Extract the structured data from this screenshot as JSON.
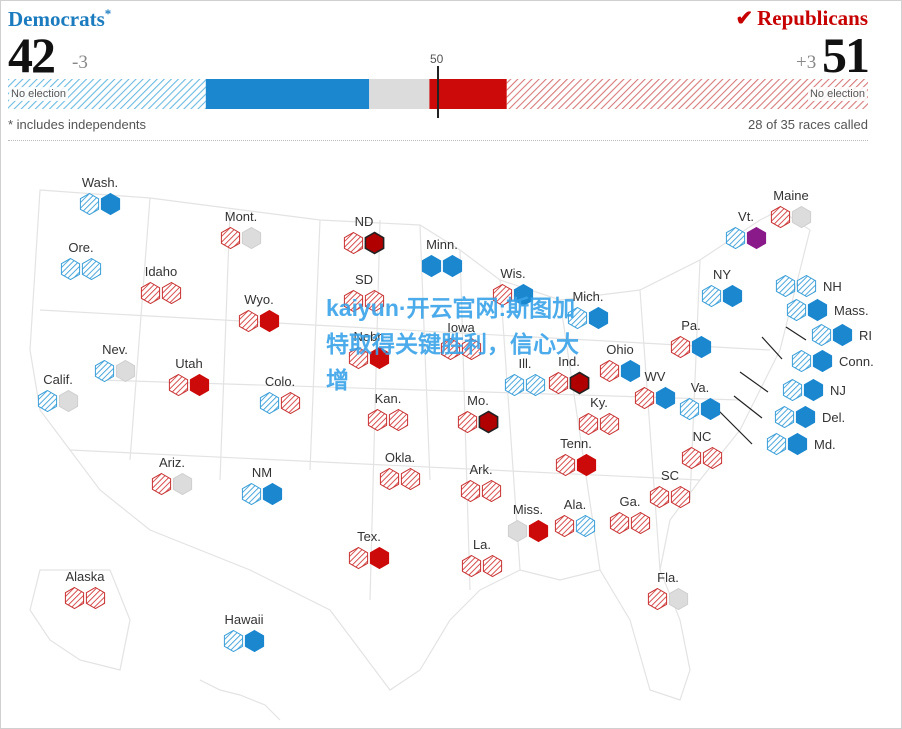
{
  "header": {
    "dem_title": "Democrats",
    "dem_asterisk": "*",
    "dem_seats": "42",
    "dem_change": "-3",
    "rep_title": "Republicans",
    "rep_check": "✔",
    "rep_seats": "51",
    "rep_change": "+3",
    "majority_label": "50",
    "no_election_left": "No election",
    "no_election_right": "No election",
    "footnote": "* includes independents",
    "races_called": "28 of 35 races called"
  },
  "seat_bar": {
    "total": 100,
    "segments": [
      {
        "party": "dem",
        "kind": "no-election",
        "seats": 23
      },
      {
        "party": "dem",
        "kind": "won",
        "seats": 19
      },
      {
        "party": "undecided",
        "kind": "uncalled",
        "seats": 7
      },
      {
        "party": "rep",
        "kind": "won",
        "seats": 9
      },
      {
        "party": "rep",
        "kind": "no-election",
        "seats": 42
      }
    ]
  },
  "colors": {
    "dem": "#1a87cf",
    "dem_hatch": "#59b3e0",
    "rep": "#cc0a0a",
    "rep_hatch": "#d65a5a",
    "rep_gain": "#b00000",
    "independent": "#8a1a8a",
    "uncalled": "#dcdcdc",
    "map_line": "#dddddd"
  },
  "watermark": "kaiyun·开云官网:斯图加特取得关键胜利，信心大增",
  "states": [
    {
      "label": "Wash.",
      "hexes": [
        "dh",
        "d"
      ]
    },
    {
      "label": "Ore.",
      "hexes": [
        "dh",
        "dh"
      ]
    },
    {
      "label": "Calif.",
      "hexes": [
        "dh",
        "u"
      ]
    },
    {
      "label": "Nev.",
      "hexes": [
        "dh",
        "u"
      ]
    },
    {
      "label": "Idaho",
      "hexes": [
        "rh",
        "rh"
      ]
    },
    {
      "label": "Mont.",
      "hexes": [
        "rh",
        "u"
      ]
    },
    {
      "label": "Wyo.",
      "hexes": [
        "rh",
        "r"
      ]
    },
    {
      "label": "Utah",
      "hexes": [
        "rh",
        "r"
      ]
    },
    {
      "label": "Colo.",
      "hexes": [
        "dh",
        "rh"
      ]
    },
    {
      "label": "Ariz.",
      "hexes": [
        "rh",
        "u"
      ]
    },
    {
      "label": "NM",
      "hexes": [
        "dh",
        "d"
      ]
    },
    {
      "label": "ND",
      "hexes": [
        "rh",
        "rg"
      ]
    },
    {
      "label": "SD",
      "hexes": [
        "rh",
        "rh"
      ]
    },
    {
      "label": "Nebr.",
      "hexes": [
        "rh",
        "r"
      ]
    },
    {
      "label": "Kan.",
      "hexes": [
        "rh",
        "rh"
      ]
    },
    {
      "label": "Okla.",
      "hexes": [
        "rh",
        "rh"
      ]
    },
    {
      "label": "Tex.",
      "hexes": [
        "rh",
        "r"
      ]
    },
    {
      "label": "Minn.",
      "hexes": [
        "d",
        "d"
      ]
    },
    {
      "label": "Iowa",
      "hexes": [
        "rh",
        "rh"
      ]
    },
    {
      "label": "Mo.",
      "hexes": [
        "rh",
        "rg"
      ]
    },
    {
      "label": "Ark.",
      "hexes": [
        "rh",
        "rh"
      ]
    },
    {
      "label": "La.",
      "hexes": [
        "rh",
        "rh"
      ]
    },
    {
      "label": "Wis.",
      "hexes": [
        "rh",
        "d"
      ]
    },
    {
      "label": "Ill.",
      "hexes": [
        "dh",
        "dh"
      ]
    },
    {
      "label": "Mich.",
      "hexes": [
        "dh",
        "d"
      ]
    },
    {
      "label": "Ind.",
      "hexes": [
        "rh",
        "rg"
      ]
    },
    {
      "label": "Ohio",
      "hexes": [
        "rh",
        "d"
      ]
    },
    {
      "label": "Ky.",
      "hexes": [
        "rh",
        "rh"
      ]
    },
    {
      "label": "Tenn.",
      "hexes": [
        "rh",
        "r"
      ]
    },
    {
      "label": "Miss.",
      "hexes": [
        "u",
        "r"
      ]
    },
    {
      "label": "Ala.",
      "hexes": [
        "rh",
        "dh"
      ]
    },
    {
      "label": "Ga.",
      "hexes": [
        "rh",
        "rh"
      ]
    },
    {
      "label": "Fla.",
      "hexes": [
        "rh",
        "u"
      ]
    },
    {
      "label": "SC",
      "hexes": [
        "rh",
        "rh"
      ]
    },
    {
      "label": "NC",
      "hexes": [
        "rh",
        "rh"
      ]
    },
    {
      "label": "WV",
      "hexes": [
        "rh",
        "d"
      ]
    },
    {
      "label": "Va.",
      "hexes": [
        "dh",
        "d"
      ]
    },
    {
      "label": "Pa.",
      "hexes": [
        "rh",
        "d"
      ]
    },
    {
      "label": "NY",
      "hexes": [
        "dh",
        "d"
      ]
    },
    {
      "label": "Vt.",
      "hexes": [
        "dh",
        "i"
      ]
    },
    {
      "label": "Maine",
      "hexes": [
        "rh",
        "u"
      ]
    },
    {
      "label": "NH",
      "hexes": [
        "dh",
        "dh"
      ]
    },
    {
      "label": "Mass.",
      "hexes": [
        "dh",
        "d"
      ]
    },
    {
      "label": "RI",
      "hexes": [
        "dh",
        "d"
      ]
    },
    {
      "label": "Conn.",
      "hexes": [
        "dh",
        "d"
      ]
    },
    {
      "label": "NJ",
      "hexes": [
        "dh",
        "d"
      ]
    },
    {
      "label": "Del.",
      "hexes": [
        "dh",
        "d"
      ]
    },
    {
      "label": "Md.",
      "hexes": [
        "dh",
        "d"
      ]
    },
    {
      "label": "Alaska",
      "hexes": [
        "rh",
        "rh"
      ]
    },
    {
      "label": "Hawaii",
      "hexes": [
        "dh",
        "d"
      ]
    }
  ]
}
